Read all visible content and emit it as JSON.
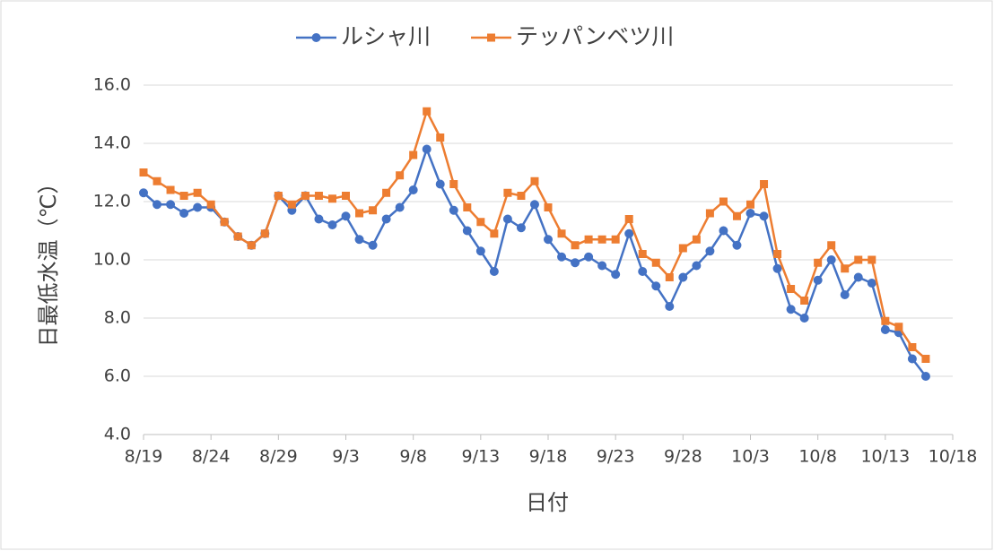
{
  "chart_data": {
    "type": "line",
    "x_label": "日付",
    "y_label": "日最低水温（℃）",
    "categories": [
      "8/19",
      null,
      null,
      null,
      null,
      "8/24",
      null,
      null,
      null,
      null,
      "8/29",
      null,
      null,
      null,
      null,
      "9/3",
      null,
      null,
      null,
      null,
      "9/8",
      null,
      null,
      null,
      null,
      "9/13",
      null,
      null,
      null,
      null,
      "9/18",
      null,
      null,
      null,
      null,
      "9/23",
      null,
      null,
      null,
      null,
      "9/28",
      null,
      null,
      null,
      null,
      "10/3",
      null,
      null,
      null,
      null,
      "10/8",
      null,
      null,
      null,
      null,
      "10/13",
      null,
      null,
      null,
      null,
      "10/18"
    ],
    "series": [
      {
        "name": "ルシャ川",
        "color": "#4472c4",
        "marker": "circle",
        "values": [
          12.3,
          11.9,
          11.9,
          11.6,
          11.8,
          11.8,
          11.3,
          10.8,
          10.5,
          10.9,
          12.2,
          11.7,
          12.2,
          11.4,
          11.2,
          11.5,
          10.7,
          10.5,
          11.4,
          11.8,
          12.4,
          13.8,
          12.6,
          11.7,
          11.0,
          10.3,
          9.6,
          11.4,
          11.1,
          11.9,
          10.7,
          10.1,
          9.9,
          10.1,
          9.8,
          9.5,
          10.9,
          9.6,
          9.1,
          8.4,
          9.4,
          9.8,
          10.3,
          11.0,
          10.5,
          11.6,
          11.5,
          9.7,
          8.3,
          8.0,
          9.3,
          10.0,
          8.8,
          9.4,
          9.2,
          7.6,
          7.5,
          6.6,
          6.0,
          null,
          null
        ]
      },
      {
        "name": "テッパンベツ川",
        "color": "#ed7d31",
        "marker": "square",
        "values": [
          13.0,
          12.7,
          12.4,
          12.2,
          12.3,
          11.9,
          11.3,
          10.8,
          10.5,
          10.9,
          12.2,
          11.9,
          12.2,
          12.2,
          12.1,
          12.2,
          11.6,
          11.7,
          12.3,
          12.9,
          13.6,
          15.1,
          14.2,
          12.6,
          11.8,
          11.3,
          10.9,
          12.3,
          12.2,
          12.7,
          11.8,
          10.9,
          10.5,
          10.7,
          10.7,
          10.7,
          11.4,
          10.2,
          9.9,
          9.4,
          10.4,
          10.7,
          11.6,
          12.0,
          11.5,
          11.9,
          12.6,
          10.2,
          9.0,
          8.6,
          9.9,
          10.5,
          9.7,
          10.0,
          10.0,
          7.9,
          7.7,
          7.0,
          6.6,
          null,
          null
        ]
      }
    ],
    "ylim": [
      4,
      16
    ],
    "yticks": [
      {
        "value": 4,
        "label": "4.0"
      },
      {
        "value": 6,
        "label": "6.0"
      },
      {
        "value": 8,
        "label": "8.0"
      },
      {
        "value": 10,
        "label": "10.0"
      },
      {
        "value": 12,
        "label": "12.0"
      },
      {
        "value": 14,
        "label": "14.0"
      },
      {
        "value": 16,
        "label": "16.0"
      }
    ],
    "grid": true,
    "legend": "top"
  }
}
